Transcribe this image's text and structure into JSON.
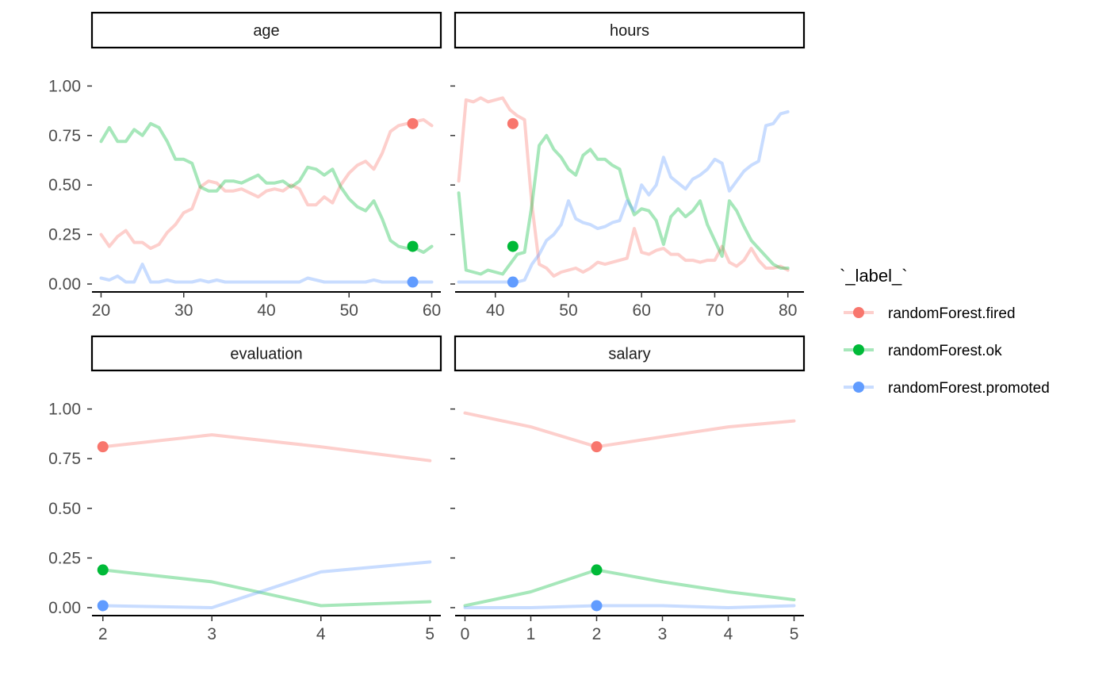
{
  "chart_data": {
    "type": "line",
    "legend": {
      "title": "`_label_`",
      "placement": "right",
      "entries": [
        {
          "name": "randomForest.fired",
          "color": "#F8766D"
        },
        {
          "name": "randomForest.ok",
          "color": "#00BA38"
        },
        {
          "name": "randomForest.promoted",
          "color": "#619CFF"
        }
      ]
    },
    "y_ticks": [
      "1.00",
      "0.75",
      "0.50",
      "0.25",
      "0.00"
    ],
    "y_tick_values": [
      1.0,
      0.75,
      0.5,
      0.25,
      0.0
    ],
    "ylim": [
      -0.04,
      1.19
    ],
    "grid": false,
    "panels": [
      {
        "title": "age",
        "xlim": [
          18.9,
          61.1
        ],
        "x_ticks": [
          "20",
          "30",
          "40",
          "50",
          "60"
        ],
        "x_tick_values": [
          20,
          30,
          40,
          50,
          60
        ],
        "series": [
          {
            "name": "randomForest.fired",
            "color": "#F8766D",
            "x": [
              20,
              21,
              22,
              23,
              24,
              25,
              26,
              27,
              28,
              29,
              30,
              31,
              32,
              33,
              34,
              35,
              36,
              37,
              38,
              39,
              40,
              41,
              42,
              43,
              44,
              45,
              46,
              47,
              48,
              49,
              50,
              51,
              52,
              53,
              54,
              55,
              56,
              57,
              58,
              59,
              60
            ],
            "y": [
              0.25,
              0.19,
              0.24,
              0.27,
              0.21,
              0.21,
              0.18,
              0.2,
              0.26,
              0.3,
              0.36,
              0.38,
              0.49,
              0.52,
              0.51,
              0.47,
              0.47,
              0.48,
              0.46,
              0.44,
              0.47,
              0.48,
              0.47,
              0.5,
              0.48,
              0.4,
              0.4,
              0.44,
              0.41,
              0.5,
              0.56,
              0.6,
              0.62,
              0.58,
              0.66,
              0.77,
              0.8,
              0.81,
              0.82,
              0.83,
              0.8
            ]
          },
          {
            "name": "randomForest.ok",
            "color": "#00BA38",
            "x": [
              20,
              21,
              22,
              23,
              24,
              25,
              26,
              27,
              28,
              29,
              30,
              31,
              32,
              33,
              34,
              35,
              36,
              37,
              38,
              39,
              40,
              41,
              42,
              43,
              44,
              45,
              46,
              47,
              48,
              49,
              50,
              51,
              52,
              53,
              54,
              55,
              56,
              57,
              58,
              59,
              60
            ],
            "y": [
              0.72,
              0.79,
              0.72,
              0.72,
              0.78,
              0.75,
              0.81,
              0.79,
              0.72,
              0.63,
              0.63,
              0.61,
              0.49,
              0.47,
              0.47,
              0.52,
              0.52,
              0.51,
              0.53,
              0.55,
              0.51,
              0.51,
              0.52,
              0.49,
              0.52,
              0.59,
              0.58,
              0.55,
              0.58,
              0.49,
              0.43,
              0.39,
              0.37,
              0.42,
              0.33,
              0.22,
              0.19,
              0.18,
              0.18,
              0.16,
              0.19
            ]
          },
          {
            "name": "randomForest.promoted",
            "color": "#619CFF",
            "x": [
              20,
              21,
              22,
              23,
              24,
              25,
              26,
              27,
              28,
              29,
              30,
              31,
              32,
              33,
              34,
              35,
              36,
              37,
              38,
              39,
              40,
              41,
              42,
              43,
              44,
              45,
              46,
              47,
              48,
              49,
              50,
              51,
              52,
              53,
              54,
              55,
              56,
              57,
              58,
              59,
              60
            ],
            "y": [
              0.03,
              0.02,
              0.04,
              0.01,
              0.01,
              0.1,
              0.01,
              0.01,
              0.02,
              0.01,
              0.01,
              0.01,
              0.02,
              0.01,
              0.02,
              0.01,
              0.01,
              0.01,
              0.01,
              0.01,
              0.01,
              0.01,
              0.01,
              0.01,
              0.01,
              0.03,
              0.02,
              0.01,
              0.01,
              0.01,
              0.01,
              0.01,
              0.01,
              0.02,
              0.01,
              0.01,
              0.01,
              0.01,
              0.01,
              0.01,
              0.01
            ]
          }
        ],
        "observation": {
          "x": 57.7,
          "fired": 0.81,
          "ok": 0.19,
          "promoted": 0.01
        }
      },
      {
        "title": "hours",
        "xlim": [
          34.5,
          82.2
        ],
        "x_ticks": [
          "40",
          "50",
          "60",
          "70",
          "80"
        ],
        "x_tick_values": [
          40,
          50,
          60,
          70,
          80
        ],
        "series": [
          {
            "name": "randomForest.fired",
            "color": "#F8766D",
            "x": [
              35,
              36,
              37,
              38,
              39,
              40,
              41,
              42,
              43,
              44,
              45,
              46,
              47,
              48,
              49,
              50,
              51,
              52,
              53,
              54,
              55,
              56,
              57,
              58,
              59,
              60,
              61,
              62,
              63,
              64,
              65,
              66,
              67,
              68,
              69,
              70,
              71,
              72,
              73,
              74,
              75,
              76,
              77,
              78,
              79,
              80
            ],
            "y": [
              0.52,
              0.93,
              0.92,
              0.94,
              0.92,
              0.93,
              0.94,
              0.88,
              0.85,
              0.83,
              0.4,
              0.1,
              0.08,
              0.04,
              0.06,
              0.07,
              0.08,
              0.06,
              0.08,
              0.11,
              0.1,
              0.11,
              0.12,
              0.13,
              0.28,
              0.16,
              0.15,
              0.17,
              0.18,
              0.15,
              0.15,
              0.12,
              0.12,
              0.11,
              0.12,
              0.12,
              0.19,
              0.11,
              0.09,
              0.12,
              0.18,
              0.12,
              0.08,
              0.08,
              0.09,
              0.07
            ]
          },
          {
            "name": "randomForest.ok",
            "color": "#00BA38",
            "x": [
              35,
              36,
              37,
              38,
              39,
              40,
              41,
              42,
              43,
              44,
              45,
              46,
              47,
              48,
              49,
              50,
              51,
              52,
              53,
              54,
              55,
              56,
              57,
              58,
              59,
              60,
              61,
              62,
              63,
              64,
              65,
              66,
              67,
              68,
              69,
              70,
              71,
              72,
              73,
              74,
              75,
              76,
              77,
              78,
              79,
              80
            ],
            "y": [
              0.46,
              0.07,
              0.06,
              0.05,
              0.07,
              0.06,
              0.05,
              0.1,
              0.15,
              0.16,
              0.4,
              0.7,
              0.75,
              0.68,
              0.64,
              0.58,
              0.55,
              0.65,
              0.68,
              0.63,
              0.63,
              0.6,
              0.58,
              0.44,
              0.35,
              0.38,
              0.37,
              0.32,
              0.2,
              0.34,
              0.38,
              0.34,
              0.37,
              0.42,
              0.3,
              0.22,
              0.14,
              0.42,
              0.37,
              0.29,
              0.22,
              0.18,
              0.14,
              0.1,
              0.08,
              0.08
            ]
          },
          {
            "name": "randomForest.promoted",
            "color": "#619CFF",
            "x": [
              35,
              36,
              37,
              38,
              39,
              40,
              41,
              42,
              43,
              44,
              45,
              46,
              47,
              48,
              49,
              50,
              51,
              52,
              53,
              54,
              55,
              56,
              57,
              58,
              59,
              60,
              61,
              62,
              63,
              64,
              65,
              66,
              67,
              68,
              69,
              70,
              71,
              72,
              73,
              74,
              75,
              76,
              77,
              78,
              79,
              80
            ],
            "y": [
              0.01,
              0.01,
              0.01,
              0.01,
              0.01,
              0.01,
              0.01,
              0.01,
              0.01,
              0.02,
              0.1,
              0.15,
              0.22,
              0.25,
              0.3,
              0.42,
              0.33,
              0.31,
              0.3,
              0.28,
              0.29,
              0.31,
              0.32,
              0.42,
              0.37,
              0.5,
              0.45,
              0.5,
              0.64,
              0.54,
              0.51,
              0.48,
              0.53,
              0.55,
              0.58,
              0.63,
              0.61,
              0.47,
              0.52,
              0.57,
              0.6,
              0.62,
              0.8,
              0.81,
              0.86,
              0.87
            ]
          }
        ],
        "observation": {
          "x": 42.4,
          "fired": 0.81,
          "ok": 0.19,
          "promoted": 0.01
        }
      },
      {
        "title": "evaluation",
        "xlim": [
          1.9,
          5.1
        ],
        "x_ticks": [
          "2",
          "3",
          "4",
          "5"
        ],
        "x_tick_values": [
          2,
          3,
          4,
          5
        ],
        "series": [
          {
            "name": "randomForest.fired",
            "color": "#F8766D",
            "x": [
              2,
              3,
              4,
              5
            ],
            "y": [
              0.81,
              0.87,
              0.81,
              0.74
            ]
          },
          {
            "name": "randomForest.ok",
            "color": "#00BA38",
            "x": [
              2,
              3,
              4,
              5
            ],
            "y": [
              0.19,
              0.13,
              0.01,
              0.03
            ]
          },
          {
            "name": "randomForest.promoted",
            "color": "#619CFF",
            "x": [
              2,
              3,
              4,
              5
            ],
            "y": [
              0.01,
              0.0,
              0.18,
              0.23
            ]
          }
        ],
        "observation": {
          "x": 2,
          "fired": 0.81,
          "ok": 0.19,
          "promoted": 0.01
        }
      },
      {
        "title": "salary",
        "xlim": [
          -0.15,
          5.15
        ],
        "x_ticks": [
          "0",
          "1",
          "2",
          "3",
          "4",
          "5"
        ],
        "x_tick_values": [
          0,
          1,
          2,
          3,
          4,
          5
        ],
        "series": [
          {
            "name": "randomForest.fired",
            "color": "#F8766D",
            "x": [
              0,
              1,
              2,
              3,
              4,
              5
            ],
            "y": [
              0.98,
              0.91,
              0.81,
              0.86,
              0.91,
              0.94
            ]
          },
          {
            "name": "randomForest.ok",
            "color": "#00BA38",
            "x": [
              0,
              1,
              2,
              3,
              4,
              5
            ],
            "y": [
              0.01,
              0.08,
              0.19,
              0.13,
              0.08,
              0.04
            ]
          },
          {
            "name": "randomForest.promoted",
            "color": "#619CFF",
            "x": [
              0,
              1,
              2,
              3,
              4,
              5
            ],
            "y": [
              0.0,
              0.0,
              0.01,
              0.01,
              0.0,
              0.01
            ]
          }
        ],
        "observation": {
          "x": 2,
          "fired": 0.81,
          "ok": 0.19,
          "promoted": 0.01
        }
      }
    ]
  }
}
